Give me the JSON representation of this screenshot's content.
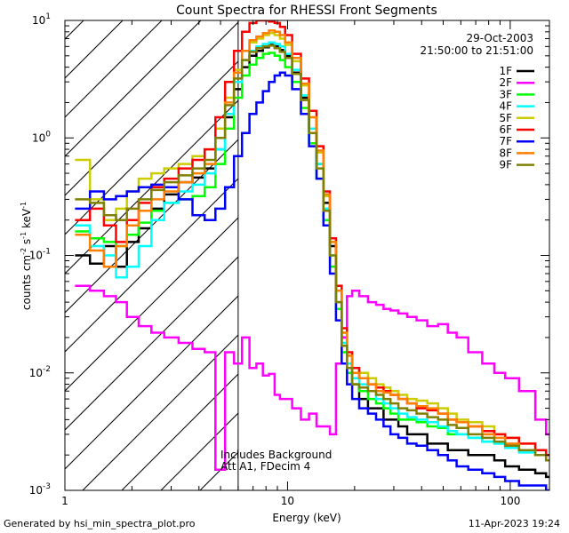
{
  "chart_data": {
    "type": "line",
    "title": "Count Spectra for RHESSI Front Segments",
    "xlabel": "Energy (keV)",
    "ylabel": "counts cm-2 s-1 keV-1",
    "ylabel_parts": {
      "counts": "counts cm",
      "e1": "-2",
      "s": " s",
      "e2": "-1",
      "kev": " keV",
      "e3": "-1"
    },
    "xscale": "log",
    "yscale": "log",
    "xlim": [
      1,
      150
    ],
    "ylim": [
      0.001,
      10
    ],
    "xticks": [
      {
        "v": 1,
        "label": "1"
      },
      {
        "v": 10,
        "label": "10"
      },
      {
        "v": 100,
        "label": "100"
      }
    ],
    "yticks": [
      {
        "v": 0.001,
        "base": "10",
        "exp": "-3"
      },
      {
        "v": 0.01,
        "base": "10",
        "exp": "-2"
      },
      {
        "v": 0.1,
        "base": "10",
        "exp": "-1"
      },
      {
        "v": 1,
        "base": "10",
        "exp": "0"
      },
      {
        "v": 10,
        "base": "10",
        "exp": "1"
      }
    ],
    "date": "29-Oct-2003",
    "time_range": "21:50:00 to 21:51:00",
    "hatch_max_energy": 6,
    "annotation": [
      "Includes Background",
      "Att A1, FDecim 4"
    ],
    "x": [
      1.2,
      1.4,
      1.6,
      1.8,
      2.0,
      2.3,
      2.6,
      3.0,
      3.5,
      4.0,
      4.5,
      5.0,
      5.5,
      6.0,
      6.5,
      7.0,
      7.5,
      8.0,
      8.5,
      9.0,
      9.5,
      10,
      11,
      12,
      13,
      14,
      15,
      16,
      17,
      18,
      19,
      20,
      22,
      24,
      26,
      28,
      30,
      33,
      36,
      40,
      45,
      50,
      55,
      60,
      70,
      80,
      90,
      100,
      120,
      140,
      150
    ],
    "series": [
      {
        "name": "1F",
        "color": "#000000",
        "values": [
          0.1,
          0.085,
          0.12,
          0.08,
          0.13,
          0.17,
          0.25,
          0.33,
          0.42,
          0.46,
          0.55,
          0.8,
          1.5,
          2.6,
          4.0,
          5.0,
          5.5,
          5.9,
          6.2,
          6.0,
          5.6,
          5.0,
          3.6,
          2.2,
          1.2,
          0.6,
          0.28,
          0.12,
          0.05,
          0.02,
          0.012,
          0.008,
          0.006,
          0.005,
          0.005,
          0.004,
          0.004,
          0.0035,
          0.003,
          0.003,
          0.0025,
          0.0025,
          0.0022,
          0.0022,
          0.002,
          0.002,
          0.0018,
          0.0016,
          0.0015,
          0.0014,
          0.0013
        ]
      },
      {
        "name": "2F",
        "color": "#ff00ff",
        "values": [
          0.055,
          0.05,
          0.045,
          0.04,
          0.03,
          0.025,
          0.022,
          0.02,
          0.018,
          0.016,
          0.015,
          0.0015,
          0.015,
          0.012,
          0.02,
          0.011,
          0.012,
          0.0095,
          0.0098,
          0.0065,
          0.006,
          0.006,
          0.005,
          0.004,
          0.0045,
          0.0035,
          0.0035,
          0.003,
          0.012,
          0.02,
          0.045,
          0.05,
          0.045,
          0.04,
          0.038,
          0.035,
          0.034,
          0.032,
          0.03,
          0.028,
          0.025,
          0.026,
          0.022,
          0.02,
          0.015,
          0.012,
          0.01,
          0.009,
          0.007,
          0.004,
          0.003
        ]
      },
      {
        "name": "3F",
        "color": "#00ff00",
        "values": [
          0.16,
          0.14,
          0.13,
          0.12,
          0.15,
          0.19,
          0.24,
          0.28,
          0.3,
          0.32,
          0.38,
          0.6,
          1.2,
          2.2,
          3.4,
          4.2,
          4.8,
          5.2,
          5.3,
          5.0,
          4.6,
          4.0,
          3.0,
          1.8,
          0.9,
          0.45,
          0.2,
          0.08,
          0.035,
          0.015,
          0.01,
          0.008,
          0.007,
          0.006,
          0.0055,
          0.005,
          0.0045,
          0.004,
          0.004,
          0.0038,
          0.0035,
          0.0034,
          0.003,
          0.003,
          0.0028,
          0.0026,
          0.0025,
          0.0024,
          0.0022,
          0.002,
          0.002
        ]
      },
      {
        "name": "4F",
        "color": "#00ffff",
        "values": [
          0.18,
          0.12,
          0.1,
          0.065,
          0.08,
          0.12,
          0.2,
          0.28,
          0.35,
          0.4,
          0.5,
          0.8,
          1.6,
          3.0,
          4.6,
          5.5,
          6.0,
          6.3,
          6.5,
          6.3,
          6.0,
          5.2,
          3.8,
          2.3,
          1.2,
          0.6,
          0.25,
          0.1,
          0.04,
          0.018,
          0.012,
          0.009,
          0.008,
          0.007,
          0.006,
          0.0055,
          0.005,
          0.0045,
          0.0042,
          0.004,
          0.0038,
          0.0035,
          0.0032,
          0.003,
          0.0028,
          0.0026,
          0.0025,
          0.0023,
          0.0021,
          0.002,
          0.0018
        ]
      },
      {
        "name": "5F",
        "color": "#cccc00",
        "values": [
          0.65,
          0.3,
          0.2,
          0.25,
          0.35,
          0.45,
          0.5,
          0.55,
          0.6,
          0.7,
          0.8,
          1.2,
          2.2,
          3.8,
          5.5,
          6.5,
          7.0,
          7.5,
          7.8,
          7.5,
          7.0,
          6.2,
          4.5,
          2.8,
          1.5,
          0.75,
          0.32,
          0.13,
          0.05,
          0.022,
          0.014,
          0.011,
          0.01,
          0.009,
          0.008,
          0.0075,
          0.007,
          0.0065,
          0.006,
          0.0058,
          0.0055,
          0.005,
          0.0045,
          0.004,
          0.0038,
          0.0035,
          0.003,
          0.0028,
          0.0025,
          0.0022,
          0.002
        ]
      },
      {
        "name": "6F",
        "color": "#ff0000",
        "values": [
          0.2,
          0.25,
          0.18,
          0.13,
          0.2,
          0.28,
          0.38,
          0.45,
          0.55,
          0.65,
          0.8,
          1.5,
          3.0,
          5.5,
          8.0,
          9.5,
          10.0,
          10.0,
          9.8,
          9.5,
          8.8,
          7.5,
          5.2,
          3.2,
          1.7,
          0.85,
          0.35,
          0.14,
          0.055,
          0.024,
          0.015,
          0.011,
          0.009,
          0.008,
          0.0075,
          0.007,
          0.0065,
          0.006,
          0.0055,
          0.005,
          0.0048,
          0.0045,
          0.004,
          0.0038,
          0.0035,
          0.0032,
          0.003,
          0.0028,
          0.0025,
          0.0022,
          0.002
        ]
      },
      {
        "name": "7F",
        "color": "#0000ff",
        "values": [
          0.25,
          0.35,
          0.3,
          0.32,
          0.35,
          0.38,
          0.4,
          0.38,
          0.3,
          0.22,
          0.2,
          0.25,
          0.38,
          0.7,
          1.1,
          1.6,
          2.0,
          2.5,
          3.0,
          3.4,
          3.6,
          3.4,
          2.6,
          1.6,
          0.85,
          0.45,
          0.18,
          0.07,
          0.028,
          0.012,
          0.008,
          0.006,
          0.005,
          0.0045,
          0.004,
          0.0035,
          0.003,
          0.0028,
          0.0025,
          0.0024,
          0.0022,
          0.002,
          0.0018,
          0.0016,
          0.0015,
          0.0014,
          0.0013,
          0.0012,
          0.0011,
          0.0011,
          0.001
        ]
      },
      {
        "name": "8F",
        "color": "#ff8000",
        "values": [
          0.15,
          0.11,
          0.08,
          0.12,
          0.18,
          0.24,
          0.3,
          0.35,
          0.42,
          0.5,
          0.6,
          1.0,
          2.0,
          3.6,
          5.5,
          6.8,
          7.3,
          7.8,
          8.2,
          8.0,
          7.5,
          6.5,
          4.8,
          2.9,
          1.5,
          0.78,
          0.33,
          0.13,
          0.05,
          0.022,
          0.014,
          0.01,
          0.009,
          0.008,
          0.007,
          0.0068,
          0.0065,
          0.006,
          0.0055,
          0.0052,
          0.005,
          0.0045,
          0.004,
          0.0038,
          0.0035,
          0.003,
          0.0028,
          0.0025,
          0.0022,
          0.002,
          0.0018
        ]
      },
      {
        "name": "9F",
        "color": "#808000",
        "values": [
          0.3,
          0.28,
          0.22,
          0.2,
          0.25,
          0.3,
          0.36,
          0.42,
          0.48,
          0.55,
          0.65,
          1.0,
          1.9,
          3.2,
          4.6,
          5.4,
          5.8,
          6.0,
          6.1,
          5.8,
          5.4,
          4.8,
          3.5,
          2.1,
          1.1,
          0.55,
          0.24,
          0.1,
          0.04,
          0.017,
          0.011,
          0.008,
          0.0075,
          0.007,
          0.0065,
          0.006,
          0.0055,
          0.005,
          0.0048,
          0.0045,
          0.0042,
          0.004,
          0.0036,
          0.0034,
          0.003,
          0.0028,
          0.0026,
          0.0024,
          0.0022,
          0.002,
          0.0018
        ]
      }
    ]
  },
  "footer": {
    "left": "Generated by hsi_min_spectra_plot.pro",
    "right": "11-Apr-2023 19:24"
  }
}
